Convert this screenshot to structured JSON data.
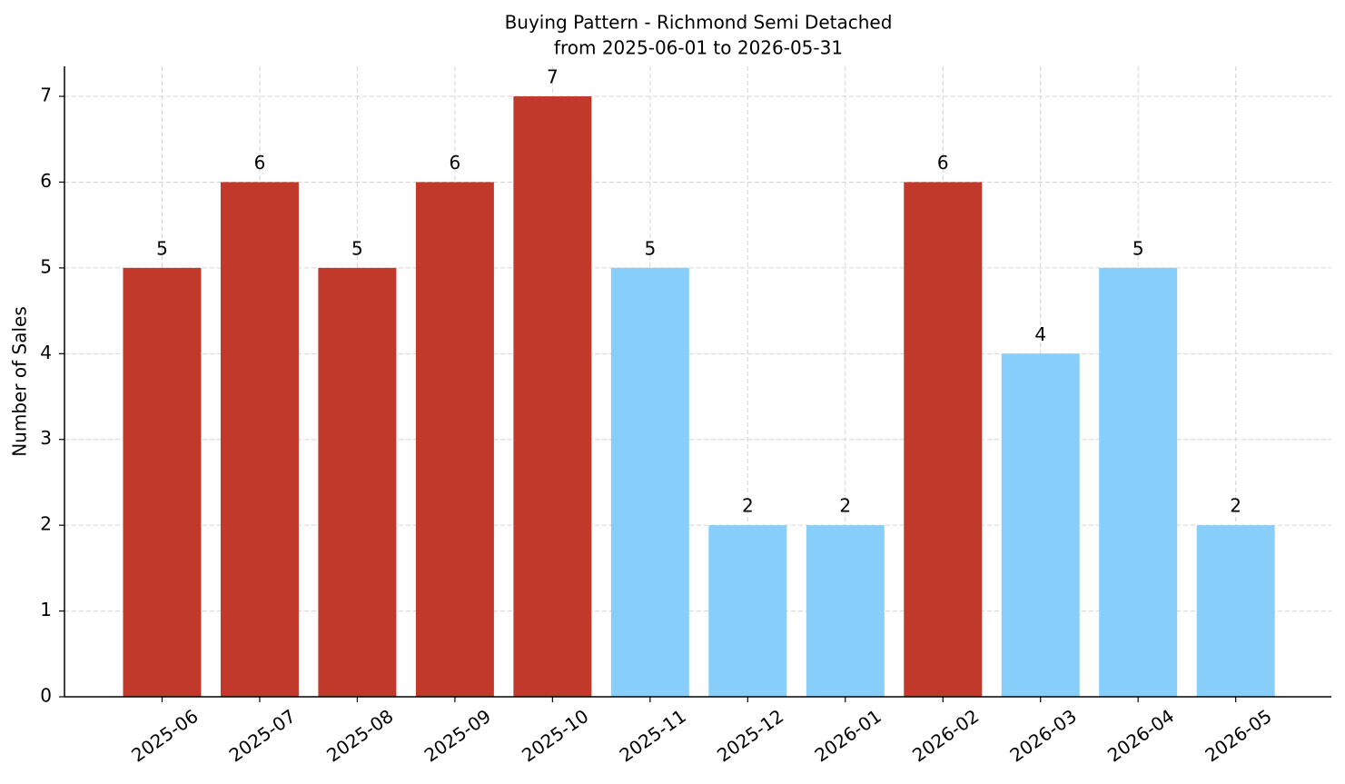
{
  "chart_data": {
    "type": "bar",
    "title": "Buying Pattern - Richmond Semi Detached",
    "subtitle": "from 2025-06-01 to 2026-05-31",
    "y_label": "Number of Sales",
    "categories": [
      "2025-06",
      "2025-07",
      "2025-08",
      "2025-09",
      "2025-10",
      "2025-11",
      "2025-12",
      "2026-01",
      "2026-02",
      "2026-03",
      "2026-04",
      "2026-05"
    ],
    "values": [
      5,
      6,
      5,
      6,
      7,
      5,
      2,
      2,
      6,
      4,
      5,
      2
    ],
    "colors": [
      "#c0392b",
      "#c0392b",
      "#c0392b",
      "#c0392b",
      "#c0392b",
      "#87cefa",
      "#87cefa",
      "#87cefa",
      "#c0392b",
      "#87cefa",
      "#87cefa",
      "#87cefa"
    ],
    "ylim": [
      0,
      7.35
    ],
    "yticks": [
      0,
      1,
      2,
      3,
      4,
      5,
      6,
      7
    ],
    "grid": true
  }
}
